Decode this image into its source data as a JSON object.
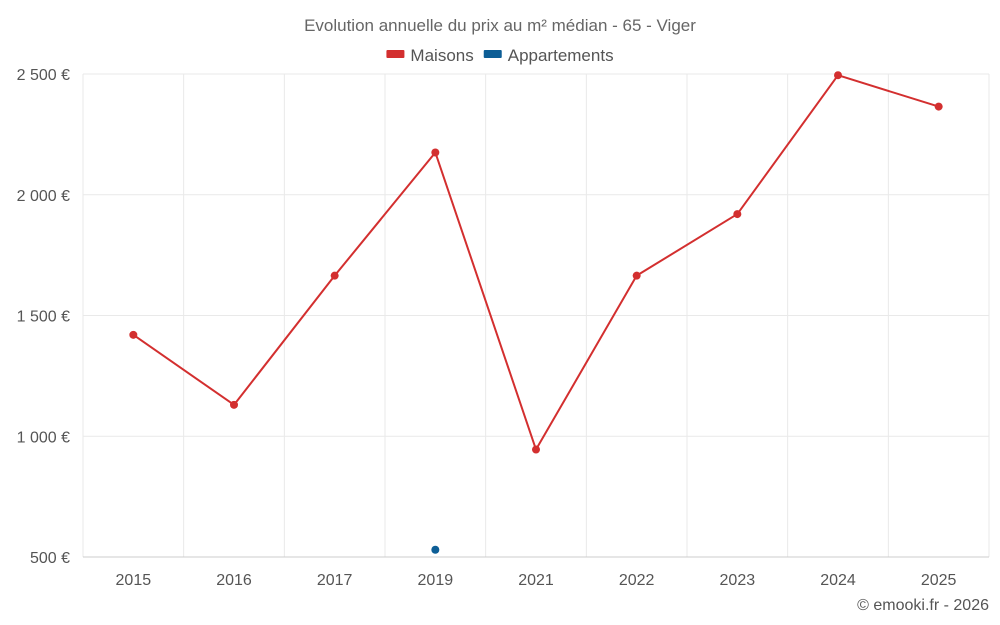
{
  "chart_data": {
    "type": "line",
    "title": "Evolution annuelle du prix au m² médian - 65 - Viger",
    "categories": [
      "2015",
      "2016",
      "2017",
      "2019",
      "2021",
      "2022",
      "2023",
      "2024",
      "2025"
    ],
    "series": [
      {
        "name": "Maisons",
        "color": "#d32f2f",
        "values": [
          1420,
          1130,
          1665,
          2175,
          945,
          1665,
          1920,
          2495,
          2365
        ]
      },
      {
        "name": "Appartements",
        "color": "#0d5e96",
        "values": [
          null,
          null,
          null,
          530,
          null,
          null,
          null,
          null,
          null
        ]
      }
    ],
    "y_ticks": [
      500,
      1000,
      1500,
      2000,
      2500
    ],
    "y_tick_labels": [
      "500 €",
      "1 000 €",
      "1 500 €",
      "2 000 €",
      "2 500 €"
    ],
    "ylim": [
      500,
      2500
    ],
    "xlabel": "",
    "ylabel": "",
    "grid": true,
    "legend_position": "top-center"
  },
  "credit": "© emooki.fr - 2026"
}
